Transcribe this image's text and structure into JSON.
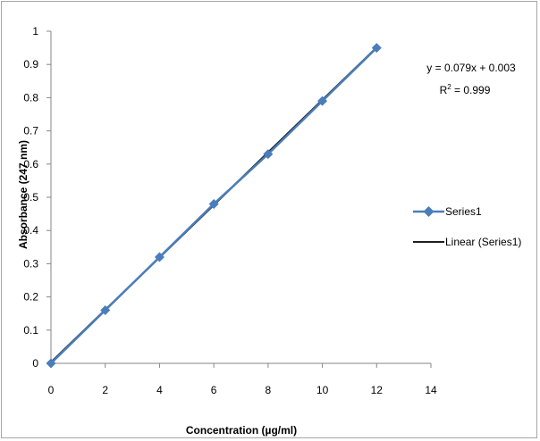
{
  "chart_data": {
    "type": "scatter",
    "xlabel": "Concentration (µg/ml)",
    "ylabel": "Absorbance (247 nm)",
    "xlim": [
      0,
      14
    ],
    "ylim": [
      0,
      1
    ],
    "xticks": [
      0,
      2,
      4,
      6,
      8,
      10,
      12,
      14
    ],
    "yticks": [
      0,
      0.1,
      0.2,
      0.3,
      0.4,
      0.5,
      0.6,
      0.7,
      0.8,
      0.9,
      1
    ],
    "grid": false,
    "legend_position": "right",
    "series": [
      {
        "name": "Series1",
        "color": "#4a7ebb",
        "marker": "diamond",
        "x": [
          0,
          2,
          4,
          6,
          8,
          10,
          12
        ],
        "y": [
          0,
          0.16,
          0.32,
          0.48,
          0.63,
          0.79,
          0.95
        ]
      }
    ],
    "trendline": {
      "name": "Linear (Series1)",
      "color": "#1f1f1f",
      "slope": 0.079,
      "intercept": 0.003,
      "x_range": [
        0,
        12
      ]
    },
    "annotations": {
      "equation": "y = 0.079x + 0.003",
      "r2_prefix": "R",
      "r2_sup": "2",
      "r2_suffix": " = 0.999"
    }
  }
}
